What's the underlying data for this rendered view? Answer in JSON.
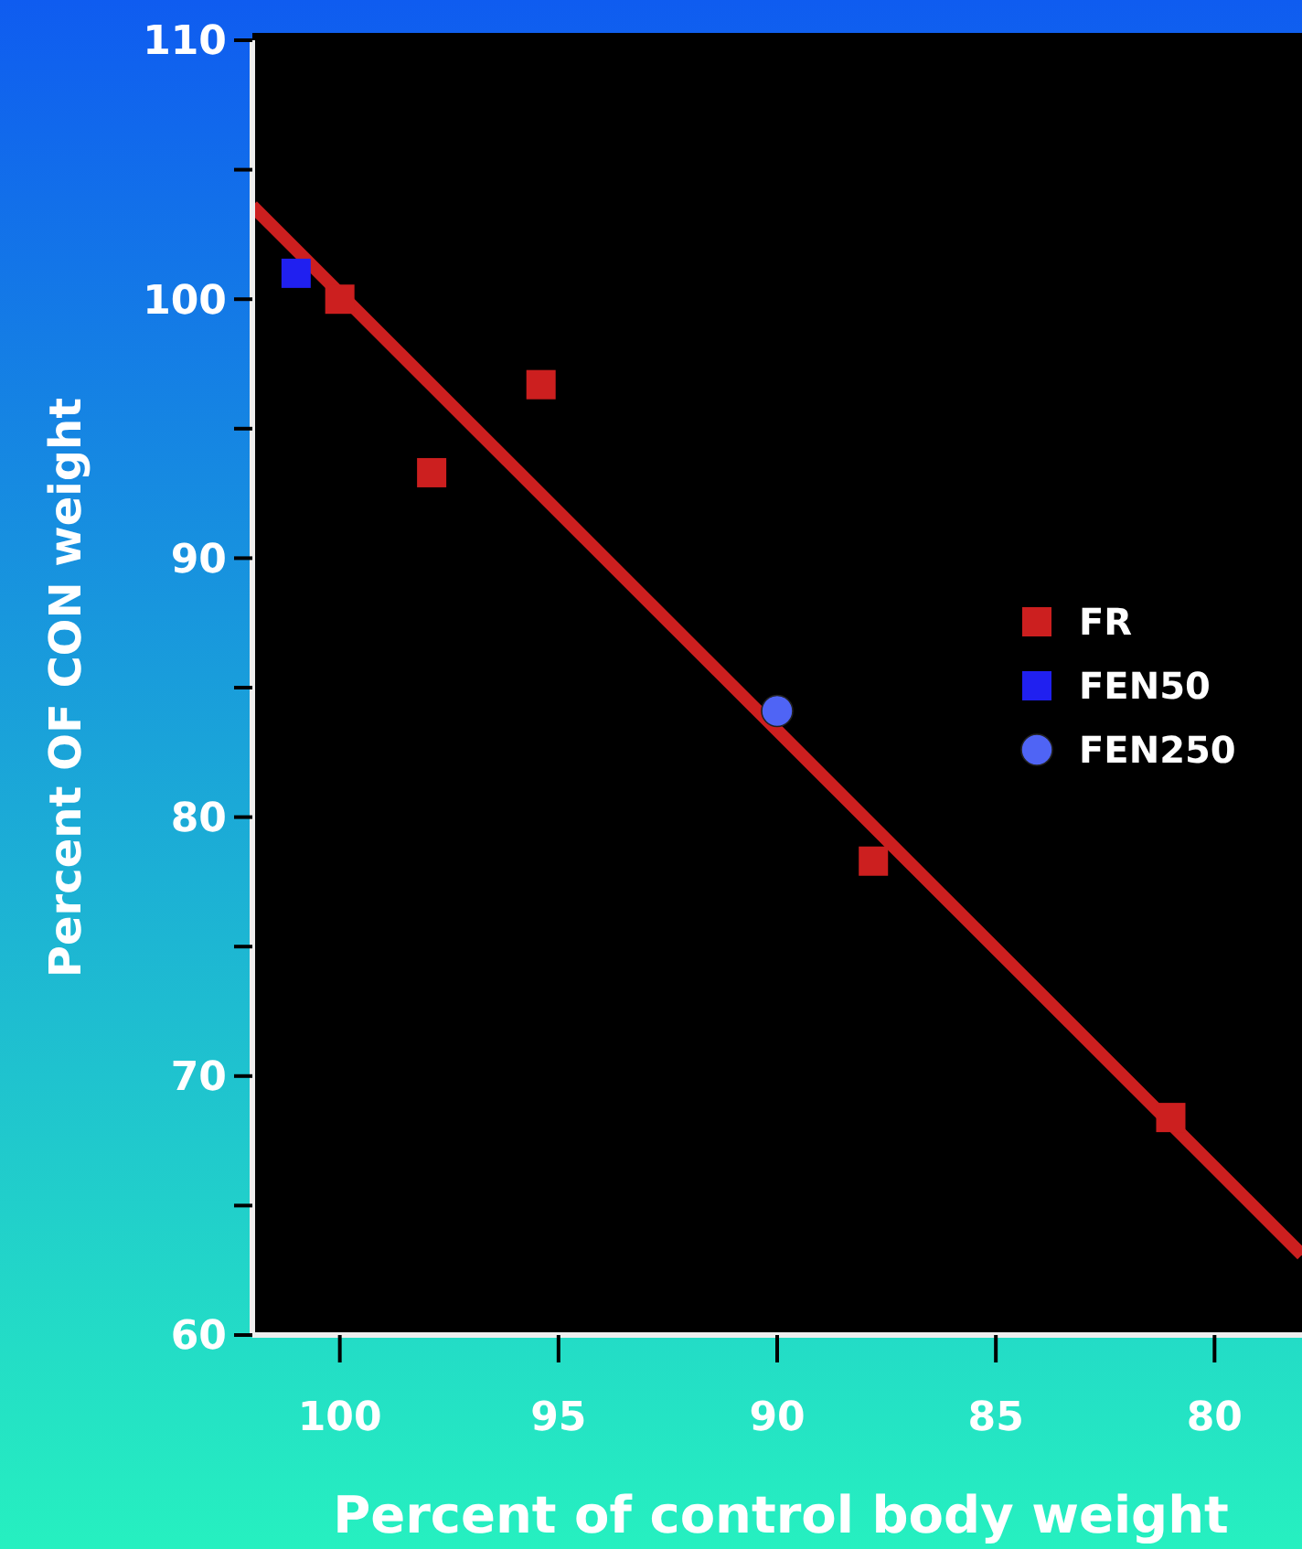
{
  "chart_data": {
    "type": "scatter",
    "xlabel": "Percent of control body weight",
    "ylabel": "Percent OF CON weight",
    "xlim": [
      102,
      78
    ],
    "ylim": [
      60,
      110
    ],
    "xticks": [
      100,
      95,
      90,
      85,
      80
    ],
    "yticks": [
      60,
      {
        "value": 65,
        "label": null
      },
      70,
      {
        "value": 75,
        "label": null
      },
      80,
      {
        "value": 85,
        "label": null
      },
      90,
      {
        "value": 95,
        "label": null
      },
      100,
      {
        "value": 105,
        "label": null
      },
      110
    ],
    "grid": false,
    "legend": "right",
    "series": [
      {
        "type": "line",
        "color": "#cc1f1f",
        "x": [
          102,
          78
        ],
        "values": [
          103.6,
          63.1
        ],
        "marker": "none",
        "line_style": "solid"
      },
      {
        "name": "FR",
        "color": "#cc1f1f",
        "marker": "square",
        "x": [
          100,
          97.9,
          95.4,
          87.8,
          81
        ],
        "values": [
          100,
          93.3,
          96.7,
          78.3,
          68.4
        ]
      },
      {
        "name": "FEN50",
        "color": "#2020f0",
        "marker": "square",
        "x": [
          101
        ],
        "values": [
          101
        ]
      },
      {
        "name": "FEN250",
        "color": "#4f64f5",
        "marker": "circle",
        "x": [
          90
        ],
        "values": [
          84.1
        ]
      }
    ]
  }
}
